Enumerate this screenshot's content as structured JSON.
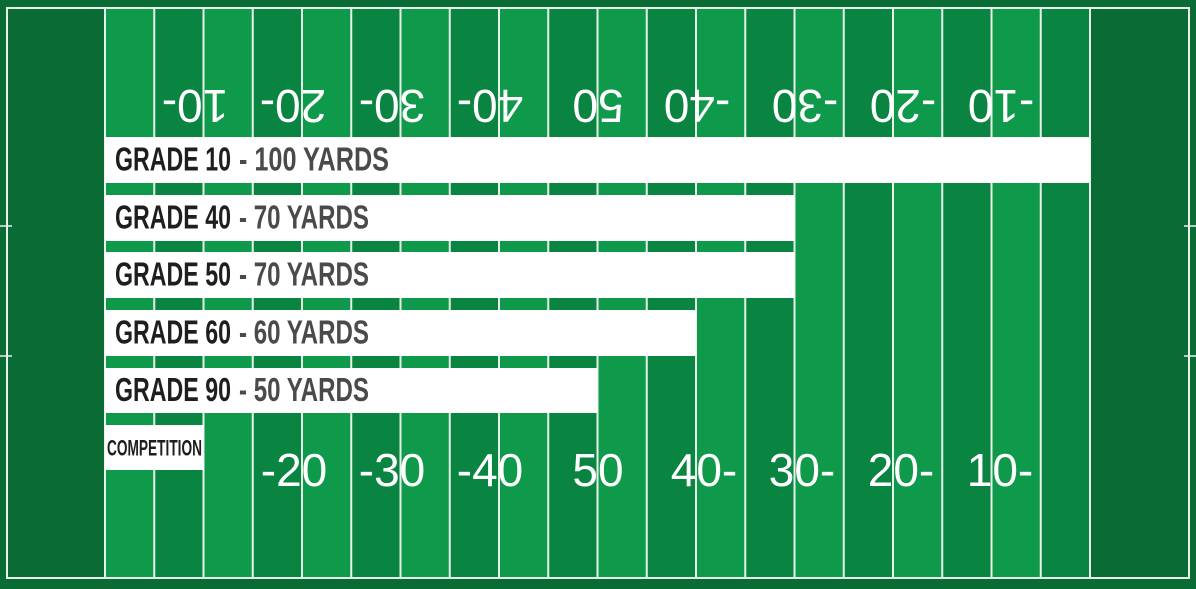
{
  "chart_data": {
    "type": "bar",
    "orientation": "horizontal",
    "categories": [
      "GRADE 10",
      "GRADE 40",
      "GRADE 50",
      "GRADE 60",
      "GRADE 90",
      "COMPETITION"
    ],
    "series": [
      {
        "values": [
          100,
          70,
          70,
          60,
          50,
          10
        ]
      }
    ],
    "value_labels": [
      "- 100 YARDS",
      "- 70 YARDS",
      "- 70 YARDS",
      "- 60 YARDS",
      "- 50 YARDS",
      ""
    ],
    "xlim": [
      0,
      100
    ],
    "top_yard_labels": [
      "10-",
      "20-",
      "30-",
      "40-",
      "50",
      "-40",
      "-30",
      "-20",
      "-10"
    ],
    "bottom_yard_labels": [
      "-20",
      "-30",
      "-40",
      "50",
      "40-",
      "30-",
      "20-",
      "10-"
    ],
    "colors": {
      "endzone": "#0b6b35",
      "stripe_light": "#0e9a4a",
      "stripe_dark": "#0a8441",
      "line": "#e6f2ea",
      "bar": "#ffffff",
      "grade_text": "#1e1e1e",
      "value_text": "#4a4a4a",
      "yard_text": "#ffffff"
    }
  }
}
